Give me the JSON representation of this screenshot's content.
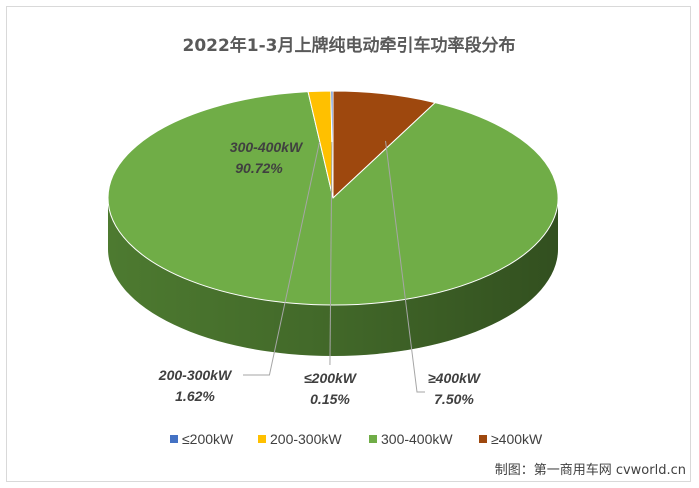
{
  "chart_data": {
    "type": "pie",
    "title": "2022年1-3月上牌纯电动牵引车功率段分布",
    "series": [
      {
        "name": "≤200kW",
        "value": 0.15,
        "percent_label": "0.15%",
        "color": "#4472c4",
        "side_color": "#2f528f"
      },
      {
        "name": "200-300kW",
        "value": 1.62,
        "percent_label": "1.62%",
        "color": "#ffc000",
        "side_color": "#9c7500"
      },
      {
        "name": "300-400kW",
        "value": 90.72,
        "percent_label": "90.72%",
        "color": "#70ad47",
        "side_color": "#4d7a30"
      },
      {
        "name": "≥400kW",
        "value": 7.5,
        "percent_label": "7.50%",
        "color": "#9e480e",
        "side_color": "#4a2105"
      }
    ],
    "legend_position": "bottom"
  },
  "credit": "制图：第一商用车网 cvworld.cn"
}
